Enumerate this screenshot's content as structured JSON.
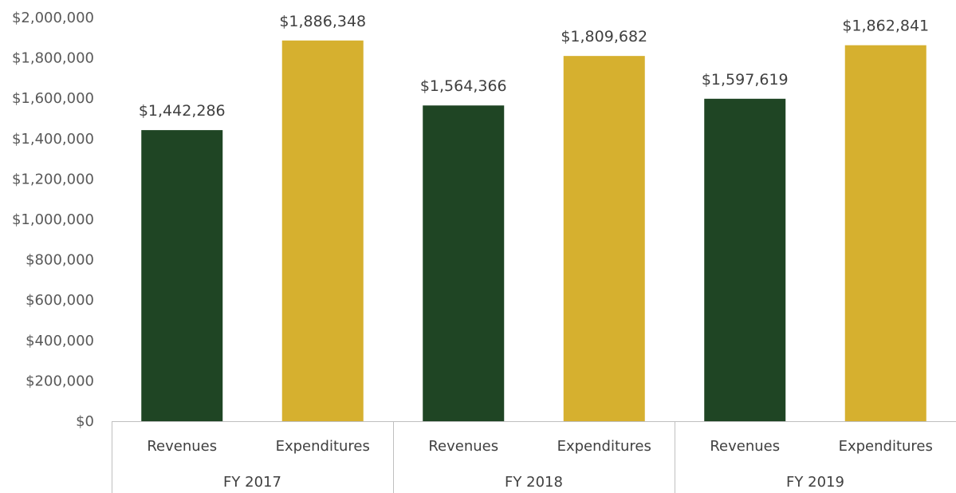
{
  "chart_data": {
    "type": "bar",
    "title": "",
    "xlabel": "",
    "ylabel": "",
    "ylim": [
      0,
      2000000
    ],
    "y_ticks": [
      0,
      200000,
      400000,
      600000,
      800000,
      1000000,
      1200000,
      1400000,
      1600000,
      1800000,
      2000000
    ],
    "y_tick_labels": [
      "$0",
      "$200,000",
      "$400,000",
      "$600,000",
      "$800,000",
      "$1,000,000",
      "$1,200,000",
      "$1,400,000",
      "$1,600,000",
      "$1,800,000",
      "$2,000,000"
    ],
    "grid": false,
    "legend": "none",
    "groups": [
      "FY 2017",
      "FY 2018",
      "FY 2019"
    ],
    "categories": [
      "Revenues",
      "Expenditures"
    ],
    "bars": [
      {
        "group": "FY 2017",
        "category": "Revenues",
        "value": 1442286,
        "label": "$1,442,286"
      },
      {
        "group": "FY 2017",
        "category": "Expenditures",
        "value": 1886348,
        "label": "$1,886,348"
      },
      {
        "group": "FY 2018",
        "category": "Revenues",
        "value": 1564366,
        "label": "$1,564,366"
      },
      {
        "group": "FY 2018",
        "category": "Expenditures",
        "value": 1809682,
        "label": "$1,809,682"
      },
      {
        "group": "FY 2019",
        "category": "Revenues",
        "value": 1597619,
        "label": "$1,597,619"
      },
      {
        "group": "FY 2019",
        "category": "Expenditures",
        "value": 1862841,
        "label": "$1,862,841"
      }
    ],
    "colors": {
      "Revenues": "#1f4524",
      "Expenditures": "#d6b02f"
    }
  }
}
